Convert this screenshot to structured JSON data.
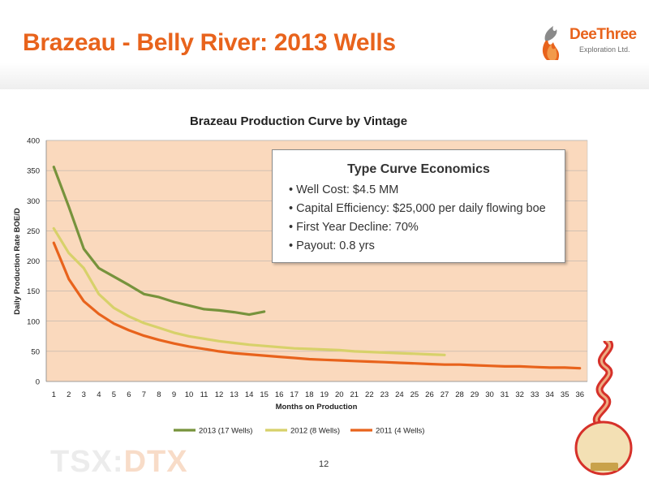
{
  "header": {
    "title": "Brazeau - Belly River: 2013 Wells"
  },
  "logo": {
    "name": "DeeThree",
    "subtitle": "Exploration Ltd."
  },
  "footer": {
    "ticker_prefix": "TSX:",
    "ticker_symbol": "DTX",
    "page_number": "12"
  },
  "colors": {
    "accent": "#e8631c",
    "series_2013": "#77933c",
    "series_2012": "#d7d16a",
    "series_2011": "#e8631c",
    "plot_bg": "#fad9bd"
  },
  "type_curve": {
    "title": "Type Curve Economics",
    "bullets": [
      "• Well Cost: $4.5 MM",
      "• Capital Efficiency: $25,000 per daily flowing boe",
      "• First Year Decline: 70%",
      "• Payout: 0.8 yrs"
    ]
  },
  "chart_data": {
    "type": "line",
    "title": "Brazeau Production Curve by Vintage",
    "xlabel": "Months on Production",
    "ylabel": "Daily Production Rate BOE/D",
    "xlim": [
      1,
      36
    ],
    "ylim": [
      0,
      400
    ],
    "yticks": [
      0,
      50,
      100,
      150,
      200,
      250,
      300,
      350,
      400
    ],
    "grid": true,
    "legend_position": "bottom",
    "series": [
      {
        "name": "2013 (17 Wells)",
        "color": "#77933c",
        "x": [
          1,
          2,
          3,
          4,
          5,
          6,
          7,
          8,
          9,
          10,
          11,
          12,
          13,
          14,
          15
        ],
        "values": [
          356,
          290,
          220,
          188,
          174,
          160,
          145,
          140,
          132,
          126,
          120,
          118,
          115,
          111,
          116
        ]
      },
      {
        "name": "2012 (8 Wells)",
        "color": "#d7d16a",
        "x": [
          1,
          2,
          3,
          4,
          5,
          6,
          7,
          8,
          9,
          10,
          11,
          12,
          13,
          14,
          15,
          16,
          17,
          18,
          19,
          20,
          21,
          22,
          23,
          24,
          25,
          26,
          27
        ],
        "values": [
          254,
          213,
          188,
          145,
          122,
          108,
          97,
          89,
          81,
          75,
          71,
          67,
          64,
          61,
          59,
          57,
          55,
          54,
          53,
          52,
          50,
          49,
          48,
          47,
          46,
          45,
          44
        ]
      },
      {
        "name": "2011 (4 Wells)",
        "color": "#e8631c",
        "x": [
          1,
          2,
          3,
          4,
          5,
          6,
          7,
          8,
          9,
          10,
          11,
          12,
          13,
          14,
          15,
          16,
          17,
          18,
          19,
          20,
          21,
          22,
          23,
          24,
          25,
          26,
          27,
          28,
          29,
          30,
          31,
          32,
          33,
          34,
          35,
          36
        ],
        "values": [
          230,
          170,
          133,
          112,
          96,
          85,
          76,
          69,
          63,
          58,
          54,
          50,
          47,
          45,
          43,
          41,
          39,
          37,
          36,
          35,
          34,
          33,
          32,
          31,
          30,
          29,
          28,
          28,
          27,
          26,
          25,
          25,
          24,
          23,
          23,
          22
        ]
      }
    ]
  }
}
